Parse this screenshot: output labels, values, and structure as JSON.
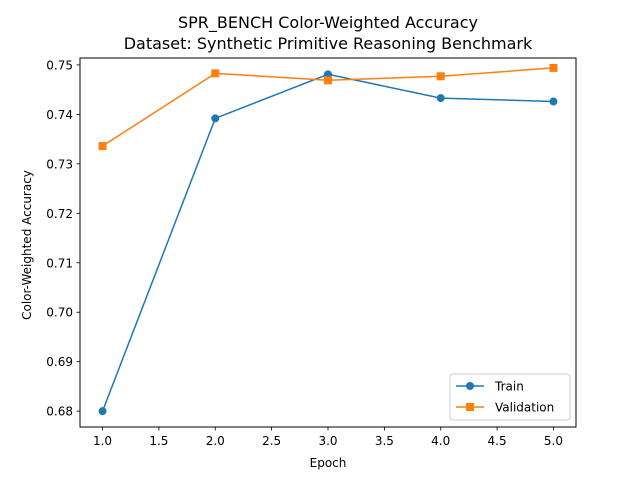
{
  "chart_data": {
    "type": "line",
    "title": "SPR_BENCH Color-Weighted Accuracy",
    "subtitle": "Dataset: Synthetic Primitive Reasoning Benchmark",
    "xlabel": "Epoch",
    "ylabel": "Color-Weighted Accuracy",
    "x": [
      1.0,
      2.0,
      3.0,
      4.0,
      5.0
    ],
    "xlim": [
      0.8,
      5.2
    ],
    "ylim": [
      0.6768,
      0.7514
    ],
    "x_ticks": [
      "1.0",
      "1.5",
      "2.0",
      "2.5",
      "3.0",
      "3.5",
      "4.0",
      "4.5",
      "5.0"
    ],
    "y_ticks": [
      "0.68",
      "0.69",
      "0.70",
      "0.71",
      "0.72",
      "0.73",
      "0.74",
      "0.75"
    ],
    "grid": false,
    "legend_position": "lower-right",
    "series": [
      {
        "name": "Train",
        "color": "#1f77b4",
        "marker": "circle",
        "values": [
          0.68,
          0.7392,
          0.7481,
          0.7433,
          0.7426
        ]
      },
      {
        "name": "Validation",
        "color": "#ff7f0e",
        "marker": "square",
        "values": [
          0.7336,
          0.7483,
          0.7469,
          0.7477,
          0.7494
        ]
      }
    ]
  }
}
